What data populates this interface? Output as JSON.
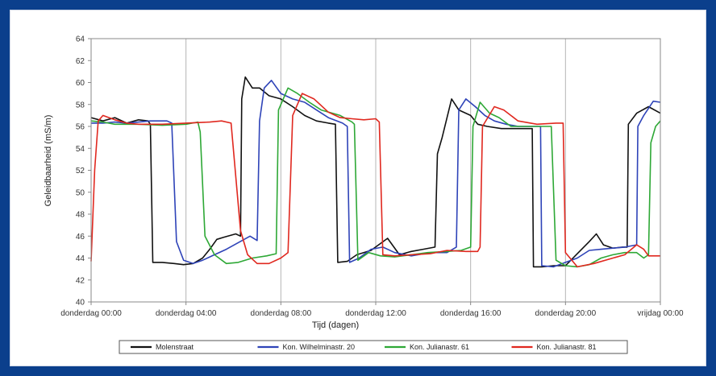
{
  "chart_data": {
    "type": "line",
    "title": "",
    "xlabel": "Tijd (dagen)",
    "ylabel": "Geleidbaarheid (mS/m)",
    "ylim": [
      40,
      64
    ],
    "yticks": [
      40,
      42,
      44,
      46,
      48,
      50,
      52,
      54,
      56,
      58,
      60,
      62,
      64
    ],
    "xlim": [
      0,
      24
    ],
    "xticks": [
      {
        "value": 0,
        "label": "donderdag 00:00"
      },
      {
        "value": 4,
        "label": "donderdag 04:00"
      },
      {
        "value": 8,
        "label": "donderdag 08:00"
      },
      {
        "value": 12,
        "label": "donderdag 12:00"
      },
      {
        "value": 16,
        "label": "donderdag 16:00"
      },
      {
        "value": 20,
        "label": "donderdag 20:00"
      },
      {
        "value": 24,
        "label": "vrijdag 00:00"
      }
    ],
    "grid": "vertical",
    "legend_position": "bottom",
    "series": [
      {
        "name": "Molenstraat",
        "color": "#111111",
        "points": [
          [
            0,
            56.8
          ],
          [
            0.5,
            56.5
          ],
          [
            1,
            56.8
          ],
          [
            1.5,
            56.3
          ],
          [
            2,
            56.6
          ],
          [
            2.4,
            56.5
          ],
          [
            2.5,
            56.2
          ],
          [
            2.6,
            43.6
          ],
          [
            3,
            43.6
          ],
          [
            3.5,
            43.5
          ],
          [
            3.9,
            43.4
          ],
          [
            4.3,
            43.5
          ],
          [
            4.7,
            44.0
          ],
          [
            5,
            44.8
          ],
          [
            5.3,
            45.7
          ],
          [
            5.6,
            45.9
          ],
          [
            6.1,
            46.2
          ],
          [
            6.3,
            46.0
          ],
          [
            6.35,
            58.5
          ],
          [
            6.5,
            60.5
          ],
          [
            6.8,
            59.5
          ],
          [
            7.1,
            59.5
          ],
          [
            7.5,
            58.8
          ],
          [
            8,
            58.5
          ],
          [
            8.5,
            57.8
          ],
          [
            9,
            57.0
          ],
          [
            9.5,
            56.5
          ],
          [
            10,
            56.3
          ],
          [
            10.3,
            56.2
          ],
          [
            10.4,
            43.6
          ],
          [
            10.8,
            43.7
          ],
          [
            11.2,
            44.3
          ],
          [
            11.8,
            44.7
          ],
          [
            12.5,
            45.8
          ],
          [
            13,
            44.3
          ],
          [
            13.5,
            44.6
          ],
          [
            14,
            44.8
          ],
          [
            14.5,
            45.0
          ],
          [
            14.6,
            53.5
          ],
          [
            14.8,
            55.0
          ],
          [
            15.2,
            58.5
          ],
          [
            15.5,
            57.5
          ],
          [
            16,
            57.0
          ],
          [
            16.3,
            56.2
          ],
          [
            16.7,
            56.0
          ],
          [
            17.3,
            55.8
          ],
          [
            18.3,
            55.8
          ],
          [
            18.6,
            55.8
          ],
          [
            18.65,
            43.2
          ],
          [
            19,
            43.2
          ],
          [
            19.5,
            43.3
          ],
          [
            20,
            43.3
          ],
          [
            20.5,
            44.4
          ],
          [
            21,
            45.5
          ],
          [
            21.3,
            46.2
          ],
          [
            21.6,
            45.2
          ],
          [
            22,
            44.9
          ],
          [
            22.4,
            45.0
          ],
          [
            22.6,
            45.0
          ],
          [
            22.65,
            56.2
          ],
          [
            23,
            57.2
          ],
          [
            23.5,
            57.8
          ],
          [
            24,
            57.2
          ]
        ]
      },
      {
        "name": "Kon. Wilhelminastr. 20",
        "color": "#2e43b8",
        "points": [
          [
            0,
            56.3
          ],
          [
            0.5,
            56.3
          ],
          [
            1,
            56.4
          ],
          [
            1.5,
            56.3
          ],
          [
            2,
            56.4
          ],
          [
            2.5,
            56.5
          ],
          [
            3.2,
            56.5
          ],
          [
            3.4,
            56.3
          ],
          [
            3.6,
            45.5
          ],
          [
            3.9,
            43.8
          ],
          [
            4.3,
            43.5
          ],
          [
            4.7,
            43.8
          ],
          [
            5.2,
            44.3
          ],
          [
            5.7,
            44.8
          ],
          [
            6.2,
            45.4
          ],
          [
            6.7,
            46.0
          ],
          [
            7.0,
            45.6
          ],
          [
            7.1,
            56.5
          ],
          [
            7.3,
            59.5
          ],
          [
            7.6,
            60.2
          ],
          [
            8,
            59.0
          ],
          [
            8.5,
            58.5
          ],
          [
            9,
            58.2
          ],
          [
            9.5,
            57.5
          ],
          [
            10,
            56.8
          ],
          [
            10.6,
            56.3
          ],
          [
            10.8,
            56.0
          ],
          [
            10.9,
            43.6
          ],
          [
            11.3,
            44.0
          ],
          [
            11.8,
            44.8
          ],
          [
            12.3,
            45.0
          ],
          [
            12.8,
            44.5
          ],
          [
            13.5,
            44.2
          ],
          [
            14.3,
            44.5
          ],
          [
            15,
            44.5
          ],
          [
            15.4,
            45.0
          ],
          [
            15.5,
            57.5
          ],
          [
            15.8,
            58.5
          ],
          [
            16.2,
            57.8
          ],
          [
            16.6,
            57.0
          ],
          [
            17,
            56.5
          ],
          [
            17.5,
            56.2
          ],
          [
            18,
            56.0
          ],
          [
            18.5,
            56.0
          ],
          [
            18.95,
            56.0
          ],
          [
            19.0,
            43.3
          ],
          [
            19.5,
            43.2
          ],
          [
            20,
            43.6
          ],
          [
            20.5,
            44.0
          ],
          [
            21,
            44.7
          ],
          [
            21.5,
            44.8
          ],
          [
            22,
            44.9
          ],
          [
            22.5,
            45.0
          ],
          [
            23.0,
            45.2
          ],
          [
            23.05,
            56.0
          ],
          [
            23.3,
            57.0
          ],
          [
            23.7,
            58.3
          ],
          [
            24,
            58.2
          ]
        ]
      },
      {
        "name": "Kon. Julianastr. 61",
        "color": "#2ea836",
        "points": [
          [
            0,
            56.5
          ],
          [
            0.5,
            56.4
          ],
          [
            1,
            56.2
          ],
          [
            2,
            56.2
          ],
          [
            3,
            56.1
          ],
          [
            4,
            56.2
          ],
          [
            4.5,
            56.4
          ],
          [
            4.6,
            55.5
          ],
          [
            4.8,
            46.0
          ],
          [
            5.2,
            44.3
          ],
          [
            5.7,
            43.5
          ],
          [
            6.2,
            43.6
          ],
          [
            6.8,
            44.0
          ],
          [
            7.4,
            44.2
          ],
          [
            7.8,
            44.4
          ],
          [
            7.9,
            57.5
          ],
          [
            8.3,
            59.5
          ],
          [
            8.7,
            59.0
          ],
          [
            9.2,
            58.2
          ],
          [
            9.7,
            57.5
          ],
          [
            10.5,
            57.0
          ],
          [
            11.0,
            56.4
          ],
          [
            11.1,
            56.2
          ],
          [
            11.25,
            43.8
          ],
          [
            11.7,
            44.5
          ],
          [
            12.2,
            44.2
          ],
          [
            12.8,
            44.1
          ],
          [
            13.5,
            44.3
          ],
          [
            14.2,
            44.5
          ],
          [
            15,
            44.6
          ],
          [
            15.6,
            44.7
          ],
          [
            16.0,
            45.0
          ],
          [
            16.1,
            56.0
          ],
          [
            16.4,
            58.2
          ],
          [
            16.8,
            57.2
          ],
          [
            17.2,
            56.8
          ],
          [
            17.7,
            56.0
          ],
          [
            18.5,
            56.0
          ],
          [
            19.4,
            56.0
          ],
          [
            19.6,
            43.8
          ],
          [
            20,
            43.3
          ],
          [
            20.5,
            43.2
          ],
          [
            21,
            43.4
          ],
          [
            21.5,
            44.0
          ],
          [
            22,
            44.3
          ],
          [
            22.5,
            44.5
          ],
          [
            23.0,
            44.5
          ],
          [
            23.3,
            44.0
          ],
          [
            23.5,
            44.3
          ],
          [
            23.6,
            54.5
          ],
          [
            23.8,
            56.0
          ],
          [
            24,
            56.5
          ]
        ]
      },
      {
        "name": "Kon. Julianastr. 81",
        "color": "#e0281f",
        "points": [
          [
            0,
            43.7
          ],
          [
            0.15,
            52.0
          ],
          [
            0.3,
            56.5
          ],
          [
            0.5,
            57.0
          ],
          [
            1,
            56.6
          ],
          [
            1.5,
            56.3
          ],
          [
            2,
            56.2
          ],
          [
            3,
            56.2
          ],
          [
            4,
            56.3
          ],
          [
            5,
            56.4
          ],
          [
            5.5,
            56.5
          ],
          [
            5.9,
            56.3
          ],
          [
            6.3,
            46.5
          ],
          [
            6.6,
            44.3
          ],
          [
            7,
            43.5
          ],
          [
            7.5,
            43.5
          ],
          [
            8,
            44.0
          ],
          [
            8.3,
            44.5
          ],
          [
            8.5,
            57.0
          ],
          [
            8.9,
            59.0
          ],
          [
            9.4,
            58.5
          ],
          [
            10,
            57.3
          ],
          [
            10.5,
            56.8
          ],
          [
            11,
            56.7
          ],
          [
            11.5,
            56.6
          ],
          [
            12,
            56.7
          ],
          [
            12.15,
            56.4
          ],
          [
            12.3,
            44.3
          ],
          [
            12.8,
            44.2
          ],
          [
            13.5,
            44.3
          ],
          [
            14.3,
            44.4
          ],
          [
            15,
            44.7
          ],
          [
            15.8,
            44.6
          ],
          [
            16.3,
            44.6
          ],
          [
            16.4,
            45.0
          ],
          [
            16.5,
            56.0
          ],
          [
            17,
            57.8
          ],
          [
            17.4,
            57.5
          ],
          [
            18,
            56.5
          ],
          [
            18.8,
            56.2
          ],
          [
            19.6,
            56.3
          ],
          [
            19.9,
            56.3
          ],
          [
            20.0,
            44.5
          ],
          [
            20.5,
            43.2
          ],
          [
            21.2,
            43.5
          ],
          [
            22,
            44.0
          ],
          [
            22.5,
            44.3
          ],
          [
            23.0,
            45.2
          ],
          [
            23.3,
            44.8
          ],
          [
            23.5,
            44.2
          ],
          [
            24,
            44.2
          ]
        ]
      }
    ]
  }
}
